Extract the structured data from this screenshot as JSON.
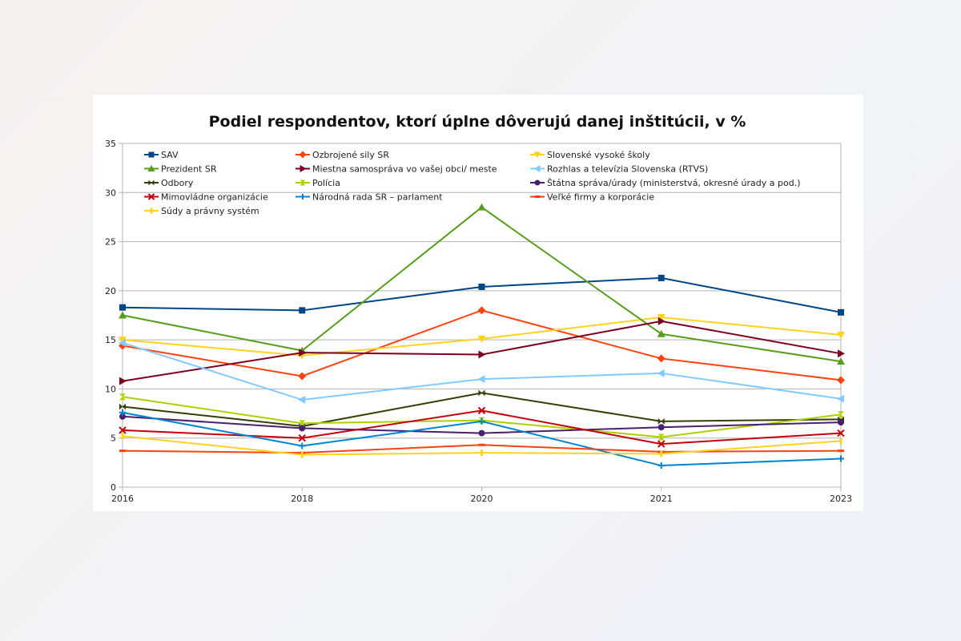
{
  "chart_data": {
    "type": "line",
    "title": "Podiel respondentov, ktorí úplne dôverujú danej inštitúcii, v %",
    "xlabel": "",
    "ylabel": "",
    "categories": [
      "2016",
      "2018",
      "2020",
      "2021",
      "2023"
    ],
    "ylim": [
      0,
      35
    ],
    "yticks": [
      0,
      5,
      10,
      15,
      20,
      25,
      30,
      35
    ],
    "grid": true,
    "legend_position": "top-inside",
    "series": [
      {
        "name": "SAV",
        "color": "#004586",
        "marker": "square",
        "values": [
          18.3,
          18.0,
          20.4,
          21.3,
          17.8
        ]
      },
      {
        "name": "Ozbrojené sily SR",
        "color": "#ff420e",
        "marker": "diamond",
        "values": [
          14.4,
          11.3,
          18.0,
          13.1,
          10.9
        ]
      },
      {
        "name": "Slovenské vysoké školy",
        "color": "#ffd320",
        "marker": "triangle-down",
        "values": [
          15.0,
          13.4,
          15.1,
          17.3,
          15.5
        ]
      },
      {
        "name": "Prezident SR",
        "color": "#579d1c",
        "marker": "triangle-up",
        "values": [
          17.5,
          13.9,
          28.5,
          15.6,
          12.8
        ]
      },
      {
        "name": "Miestna samospráva vo vašej obci/ meste",
        "color": "#7e0021",
        "marker": "triangle-right",
        "values": [
          10.8,
          13.7,
          13.5,
          16.9,
          13.6
        ]
      },
      {
        "name": "Rozhlas a televízia Slovenska (RTVS)",
        "color": "#83caff",
        "marker": "triangle-left",
        "values": [
          14.7,
          8.9,
          11.0,
          11.6,
          9.0
        ]
      },
      {
        "name": "Odbory",
        "color": "#314004",
        "marker": "bowtie",
        "values": [
          8.2,
          6.2,
          9.6,
          6.7,
          6.9
        ]
      },
      {
        "name": "Polícia",
        "color": "#aecf00",
        "marker": "hourglass",
        "values": [
          9.2,
          6.5,
          6.8,
          5.1,
          7.4
        ]
      },
      {
        "name": "Štátna správa/úrady (ministerstvá, okresné úrady a pod.)",
        "color": "#4b1f6f",
        "marker": "circle",
        "values": [
          7.2,
          6.0,
          5.5,
          6.1,
          6.6
        ]
      },
      {
        "name": "Mimovládne organizácie",
        "color": "#c5000b",
        "marker": "x",
        "values": [
          5.8,
          5.0,
          7.8,
          4.4,
          5.5
        ]
      },
      {
        "name": "Národná rada SR – parlament",
        "color": "#0084d1",
        "marker": "plus",
        "values": [
          7.6,
          4.2,
          6.7,
          2.2,
          2.9
        ]
      },
      {
        "name": "Veľké firmy a korporácie",
        "color": "#ff420e",
        "marker": "dash",
        "values": [
          3.7,
          3.5,
          4.3,
          3.6,
          3.7
        ]
      },
      {
        "name": "Súdy a právny systém",
        "color": "#ffd320",
        "marker": "vbar",
        "values": [
          5.2,
          3.3,
          3.5,
          3.4,
          4.7
        ]
      }
    ]
  }
}
